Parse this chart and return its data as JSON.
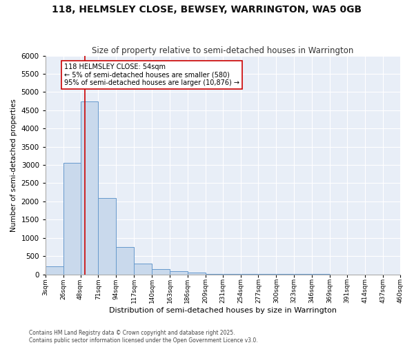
{
  "title": "118, HELMSLEY CLOSE, BEWSEY, WARRINGTON, WA5 0GB",
  "subtitle": "Size of property relative to semi-detached houses in Warrington",
  "xlabel": "Distribution of semi-detached houses by size in Warrington",
  "ylabel": "Number of semi-detached properties",
  "bins": [
    3,
    26,
    48,
    71,
    94,
    117,
    140,
    163,
    186,
    209,
    231,
    254,
    277,
    300,
    323,
    346,
    369,
    391,
    414,
    437,
    460
  ],
  "counts": [
    220,
    3050,
    4750,
    2100,
    750,
    290,
    150,
    90,
    40,
    15,
    8,
    5,
    3,
    2,
    1,
    1,
    0,
    0,
    0,
    0
  ],
  "bar_color": "#c9d9ec",
  "bar_edge_color": "#6699cc",
  "background_color": "#e8eef7",
  "grid_color": "#ffffff",
  "property_size": 54,
  "property_line_color": "#cc0000",
  "annotation_text": "118 HELMSLEY CLOSE: 54sqm\n← 5% of semi-detached houses are smaller (580)\n95% of semi-detached houses are larger (10,876) →",
  "annotation_box_color": "#ffffff",
  "annotation_box_edge_color": "#cc0000",
  "footer_line1": "Contains HM Land Registry data © Crown copyright and database right 2025.",
  "footer_line2": "Contains public sector information licensed under the Open Government Licence v3.0.",
  "ylim": [
    0,
    6000
  ],
  "yticks": [
    0,
    500,
    1000,
    1500,
    2000,
    2500,
    3000,
    3500,
    4000,
    4500,
    5000,
    5500,
    6000
  ],
  "bin_labels": [
    "3sqm",
    "26sqm",
    "48sqm",
    "71sqm",
    "94sqm",
    "117sqm",
    "140sqm",
    "163sqm",
    "186sqm",
    "209sqm",
    "231sqm",
    "254sqm",
    "277sqm",
    "300sqm",
    "323sqm",
    "346sqm",
    "369sqm",
    "391sqm",
    "414sqm",
    "437sqm",
    "460sqm"
  ]
}
